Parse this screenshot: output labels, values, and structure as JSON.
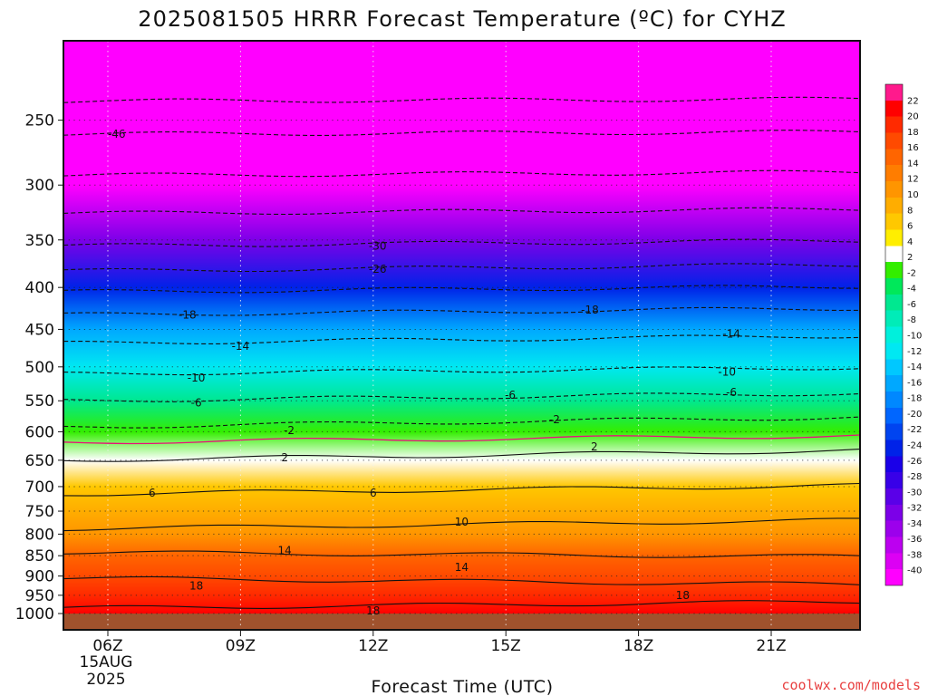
{
  "chart_data": {
    "type": "heatmap",
    "title": "2025081505 HRRR Forecast Temperature (ºC) for CYHZ",
    "xlabel": "Forecast Time (UTC)",
    "ylabel": "",
    "x_ticks": [
      "06Z",
      "09Z",
      "12Z",
      "15Z",
      "18Z",
      "21Z"
    ],
    "x_date_label": [
      "15AUG",
      "2025"
    ],
    "x_hours_range": [
      5,
      23
    ],
    "y_ticks": [
      250,
      300,
      350,
      400,
      450,
      500,
      550,
      600,
      650,
      700,
      750,
      800,
      850,
      900,
      950,
      1000
    ],
    "y_range": [
      200,
      1000
    ],
    "y_scale": "log-pressure",
    "grid": true,
    "colorbar": {
      "position": "right",
      "labels": [
        "22",
        "20",
        "18",
        "16",
        "14",
        "12",
        "10",
        "8",
        "6",
        "4",
        "2",
        "-2",
        "-4",
        "-6",
        "-8",
        "-10",
        "-12",
        "-14",
        "-16",
        "-18",
        "-20",
        "-22",
        "-24",
        "-26",
        "-28",
        "-30",
        "-32",
        "-34",
        "-36",
        "-38",
        "-40"
      ]
    },
    "contour_labels": [
      {
        "text": "-46",
        "hour": 6.2,
        "p": 260
      },
      {
        "text": "-30",
        "hour": 12.1,
        "p": 356
      },
      {
        "text": "-26",
        "hour": 12.1,
        "p": 380
      },
      {
        "text": "-18",
        "hour": 7.8,
        "p": 432
      },
      {
        "text": "-18",
        "hour": 16.9,
        "p": 426
      },
      {
        "text": "-14",
        "hour": 9.0,
        "p": 472
      },
      {
        "text": "-14",
        "hour": 20.1,
        "p": 456
      },
      {
        "text": "-10",
        "hour": 8.0,
        "p": 516
      },
      {
        "text": "-10",
        "hour": 20.0,
        "p": 507
      },
      {
        "text": "-6",
        "hour": 8.0,
        "p": 553
      },
      {
        "text": "-6",
        "hour": 15.1,
        "p": 541
      },
      {
        "text": "-6",
        "hour": 20.1,
        "p": 537
      },
      {
        "text": "-2",
        "hour": 10.1,
        "p": 598
      },
      {
        "text": "-2",
        "hour": 16.1,
        "p": 580
      },
      {
        "text": "2",
        "hour": 10.0,
        "p": 645
      },
      {
        "text": "2",
        "hour": 17.0,
        "p": 626
      },
      {
        "text": "6",
        "hour": 7.0,
        "p": 713
      },
      {
        "text": "6",
        "hour": 12.0,
        "p": 713
      },
      {
        "text": "10",
        "hour": 14.0,
        "p": 773
      },
      {
        "text": "14",
        "hour": 10.0,
        "p": 838
      },
      {
        "text": "14",
        "hour": 14.0,
        "p": 878
      },
      {
        "text": "18",
        "hour": 8.0,
        "p": 925
      },
      {
        "text": "18",
        "hour": 12.0,
        "p": 992
      },
      {
        "text": "18",
        "hour": 19.0,
        "p": 950
      }
    ]
  },
  "credit": "coolwx.com/models"
}
